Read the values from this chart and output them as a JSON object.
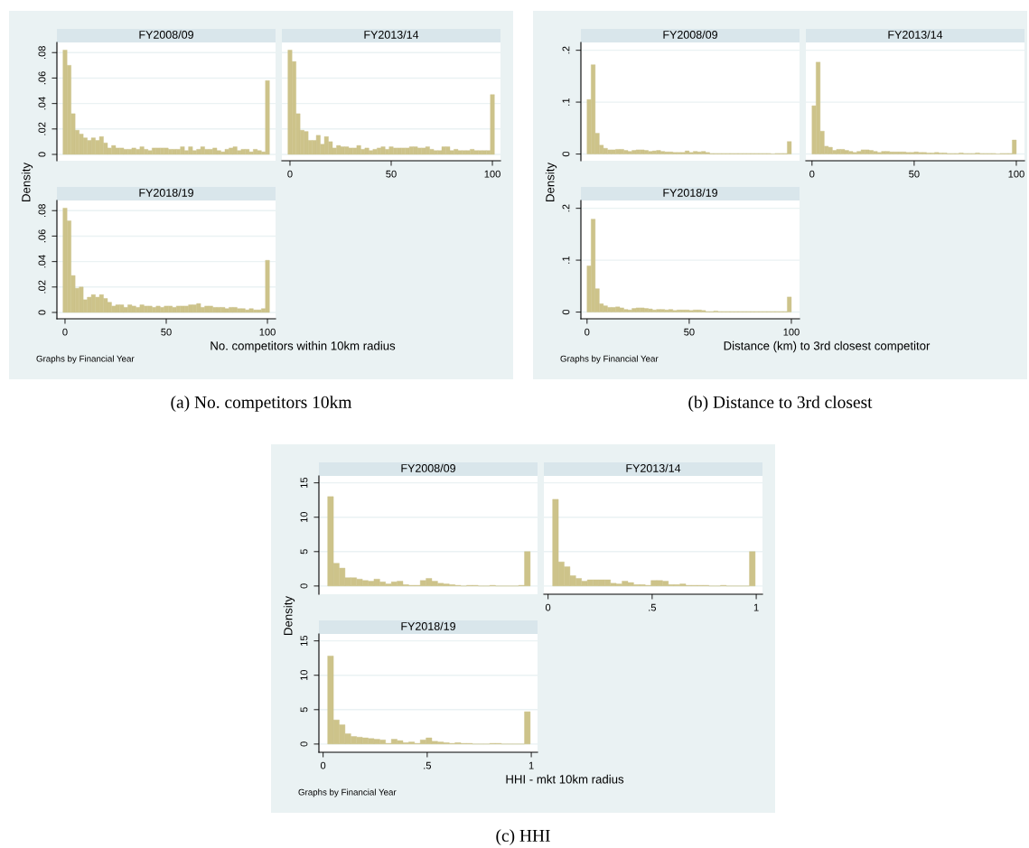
{
  "chart_data": [
    {
      "type": "histogram",
      "title": "FY2008/09",
      "ylabel": "Density",
      "color": "#cdc38a",
      "grid": "y",
      "tick_labels": "y",
      "xlim": [
        -4,
        104
      ],
      "ylim": [
        -0.005,
        0.088
      ],
      "yticks": [
        0,
        {
          "value": 0.02,
          "label": ".02"
        },
        {
          "value": 0.04,
          "label": ".04"
        },
        {
          "value": 0.06,
          "label": ".06"
        },
        {
          "value": 0.08,
          "label": ".08"
        }
      ],
      "bins": [
        -1,
        1,
        3,
        5,
        7,
        9,
        11,
        13,
        15,
        17,
        19,
        21,
        23,
        25,
        27,
        29,
        31,
        33,
        35,
        37,
        39,
        41,
        43,
        45,
        47,
        49,
        51,
        53,
        55,
        57,
        59,
        61,
        63,
        65,
        67,
        69,
        71,
        73,
        75,
        77,
        79,
        81,
        83,
        85,
        87,
        89,
        91,
        93,
        95,
        97,
        99,
        101
      ],
      "values": [
        0.082,
        0.07,
        0.032,
        0.019,
        0.016,
        0.013,
        0.011,
        0.013,
        0.011,
        0.014,
        0.009,
        0.005,
        0.007,
        0.005,
        0.005,
        0.004,
        0.004,
        0.005,
        0.004,
        0.006,
        0.004,
        0.003,
        0.005,
        0.005,
        0.005,
        0.005,
        0.004,
        0.004,
        0.004,
        0.006,
        0.003,
        0.006,
        0.003,
        0.004,
        0.006,
        0.004,
        0.004,
        0.005,
        0.003,
        0.002,
        0.004,
        0.005,
        0.006,
        0.003,
        0.004,
        0.004,
        0.002,
        0.004,
        0.003,
        0.002,
        0.058
      ]
    },
    {
      "type": "histogram",
      "title": "FY2013/14",
      "color": "#cdc38a",
      "grid": "y",
      "tick_labels": "x",
      "xlim": [
        -4,
        104
      ],
      "xticks": [
        0,
        50,
        100
      ],
      "ylim": [
        -0.005,
        0.088
      ],
      "yticks": [
        0,
        0.02,
        0.04,
        0.06,
        0.08
      ],
      "bins": [
        -1,
        1,
        3,
        5,
        7,
        9,
        11,
        13,
        15,
        17,
        19,
        21,
        23,
        25,
        27,
        29,
        31,
        33,
        35,
        37,
        39,
        41,
        43,
        45,
        47,
        49,
        51,
        53,
        55,
        57,
        59,
        61,
        63,
        65,
        67,
        69,
        71,
        73,
        75,
        77,
        79,
        81,
        83,
        85,
        87,
        89,
        91,
        93,
        95,
        97,
        99,
        101
      ],
      "values": [
        0.082,
        0.073,
        0.032,
        0.019,
        0.018,
        0.011,
        0.011,
        0.015,
        0.008,
        0.014,
        0.01,
        0.005,
        0.007,
        0.006,
        0.006,
        0.005,
        0.005,
        0.007,
        0.004,
        0.005,
        0.003,
        0.004,
        0.005,
        0.006,
        0.004,
        0.006,
        0.005,
        0.005,
        0.005,
        0.005,
        0.006,
        0.006,
        0.005,
        0.005,
        0.006,
        0.004,
        0.003,
        0.003,
        0.006,
        0.006,
        0.003,
        0.004,
        0.003,
        0.003,
        0.003,
        0.004,
        0.003,
        0.003,
        0.003,
        0.003,
        0.047
      ]
    },
    {
      "type": "histogram",
      "title": "FY2018/19",
      "xlabel": "No. competitors within 10km radius",
      "annotations": [
        "Graphs by Financial Year",
        "(a) No. competitors 10km"
      ],
      "color": "#cdc38a",
      "grid": "y",
      "xlim": [
        -4,
        104
      ],
      "xticks": [
        0,
        50,
        100
      ],
      "ylim": [
        -0.005,
        0.088
      ],
      "yticks": [
        0,
        {
          "value": 0.02,
          "label": ".02"
        },
        {
          "value": 0.04,
          "label": ".04"
        },
        {
          "value": 0.06,
          "label": ".06"
        },
        {
          "value": 0.08,
          "label": ".08"
        }
      ],
      "bins": [
        -1,
        1,
        3,
        5,
        7,
        9,
        11,
        13,
        15,
        17,
        19,
        21,
        23,
        25,
        27,
        29,
        31,
        33,
        35,
        37,
        39,
        41,
        43,
        45,
        47,
        49,
        51,
        53,
        55,
        57,
        59,
        61,
        63,
        65,
        67,
        69,
        71,
        73,
        75,
        77,
        79,
        81,
        83,
        85,
        87,
        89,
        91,
        93,
        95,
        97,
        99,
        101
      ],
      "values": [
        0.082,
        0.072,
        0.029,
        0.019,
        0.02,
        0.01,
        0.012,
        0.014,
        0.012,
        0.014,
        0.011,
        0.008,
        0.005,
        0.006,
        0.006,
        0.004,
        0.006,
        0.005,
        0.004,
        0.006,
        0.005,
        0.005,
        0.004,
        0.005,
        0.004,
        0.005,
        0.005,
        0.004,
        0.005,
        0.005,
        0.005,
        0.006,
        0.006,
        0.007,
        0.004,
        0.005,
        0.005,
        0.004,
        0.004,
        0.004,
        0.003,
        0.004,
        0.004,
        0.003,
        0.003,
        0.002,
        0.003,
        0.002,
        0.002,
        0.003,
        0.041
      ]
    },
    {
      "type": "histogram",
      "title": "FY2008/09",
      "ylabel": "Density",
      "color": "#cdc38a",
      "grid": "y",
      "tick_labels": "y",
      "xlim": [
        -3,
        104
      ],
      "ylim": [
        -0.013,
        0.215
      ],
      "yticks": [
        0,
        {
          "value": 0.1,
          "label": ".1"
        },
        {
          "value": 0.2,
          "label": ".2"
        }
      ],
      "bins": [
        0,
        2,
        4,
        6,
        8,
        10,
        12,
        14,
        16,
        18,
        20,
        22,
        24,
        26,
        28,
        30,
        32,
        34,
        36,
        38,
        40,
        42,
        44,
        46,
        48,
        50,
        52,
        54,
        56,
        58,
        60,
        62,
        64,
        66,
        68,
        70,
        72,
        74,
        76,
        78,
        80,
        82,
        84,
        86,
        88,
        90,
        92,
        94,
        96,
        98,
        100
      ],
      "values": [
        0.105,
        0.172,
        0.04,
        0.017,
        0.011,
        0.008,
        0.008,
        0.009,
        0.009,
        0.007,
        0.005,
        0.007,
        0.008,
        0.008,
        0.007,
        0.005,
        0.006,
        0.007,
        0.005,
        0.004,
        0.004,
        0.003,
        0.003,
        0.003,
        0.006,
        0.003,
        0.005,
        0.004,
        0.005,
        0.003,
        0.001,
        0.001,
        0.001,
        0.001,
        0.001,
        0.001,
        0.001,
        0.001,
        0.001,
        0.001,
        0.001,
        0.001,
        0.001,
        0.001,
        0.001,
        0,
        0.001,
        0.001,
        0.001,
        0.024
      ]
    },
    {
      "type": "histogram",
      "title": "FY2013/14",
      "color": "#cdc38a",
      "grid": "y",
      "tick_labels": "x",
      "xlim": [
        -3,
        104
      ],
      "xticks": [
        0,
        50,
        100
      ],
      "ylim": [
        -0.013,
        0.215
      ],
      "yticks": [
        0,
        0.1,
        0.2
      ],
      "bins": [
        0,
        2,
        4,
        6,
        8,
        10,
        12,
        14,
        16,
        18,
        20,
        22,
        24,
        26,
        28,
        30,
        32,
        34,
        36,
        38,
        40,
        42,
        44,
        46,
        48,
        50,
        52,
        54,
        56,
        58,
        60,
        62,
        64,
        66,
        68,
        70,
        72,
        74,
        76,
        78,
        80,
        82,
        84,
        86,
        88,
        90,
        92,
        94,
        96,
        98,
        100
      ],
      "values": [
        0.093,
        0.177,
        0.044,
        0.015,
        0.013,
        0.007,
        0.009,
        0.009,
        0.007,
        0.005,
        0.003,
        0.005,
        0.008,
        0.008,
        0.007,
        0.005,
        0.003,
        0.005,
        0.005,
        0.004,
        0.004,
        0.004,
        0.004,
        0.003,
        0.003,
        0.004,
        0.003,
        0.003,
        0.002,
        0.002,
        0.003,
        0.002,
        0.002,
        0.001,
        0.001,
        0.001,
        0.002,
        0.001,
        0.001,
        0.001,
        0.002,
        0.001,
        0.001,
        0.001,
        0.001,
        0,
        0.001,
        0.001,
        0.001,
        0.027
      ]
    },
    {
      "type": "histogram",
      "title": "FY2018/19",
      "xlabel": "Distance (km) to 3rd closest competitor",
      "annotations": [
        "Graphs by Financial Year",
        "(b) Distance to 3rd closest"
      ],
      "color": "#cdc38a",
      "grid": "y",
      "xlim": [
        -3,
        104
      ],
      "xticks": [
        0,
        50,
        100
      ],
      "ylim": [
        -0.013,
        0.215
      ],
      "yticks": [
        0,
        {
          "value": 0.1,
          "label": ".1"
        },
        {
          "value": 0.2,
          "label": ".2"
        }
      ],
      "bins": [
        0,
        2,
        4,
        6,
        8,
        10,
        12,
        14,
        16,
        18,
        20,
        22,
        24,
        26,
        28,
        30,
        32,
        34,
        36,
        38,
        40,
        42,
        44,
        46,
        48,
        50,
        52,
        54,
        56,
        58,
        60,
        62,
        64,
        66,
        68,
        70,
        72,
        74,
        76,
        78,
        80,
        82,
        84,
        86,
        88,
        90,
        92,
        94,
        96,
        98,
        100
      ],
      "values": [
        0.089,
        0.179,
        0.045,
        0.016,
        0.012,
        0.009,
        0.009,
        0.01,
        0.008,
        0.005,
        0.004,
        0.007,
        0.008,
        0.008,
        0.007,
        0.006,
        0.004,
        0.005,
        0.005,
        0.004,
        0.005,
        0.003,
        0.004,
        0.004,
        0.004,
        0.003,
        0.004,
        0.004,
        0.003,
        0.001,
        0.001,
        0.002,
        0.001,
        0.001,
        0.001,
        0.001,
        0.001,
        0.001,
        0.001,
        0.001,
        0.001,
        0.001,
        0.001,
        0.001,
        0.001,
        0.001,
        0.001,
        0.001,
        0.001,
        0.029
      ]
    },
    {
      "type": "histogram",
      "title": "FY2008/09",
      "ylabel": "Density",
      "color": "#cdc38a",
      "grid": "y",
      "tick_labels": "y",
      "xlim": [
        -0.02,
        1.03
      ],
      "ylim": [
        -1.2,
        16
      ],
      "yticks": [
        0,
        5,
        10,
        15
      ],
      "bins": [
        0.022,
        0.0498,
        0.0776,
        0.1054,
        0.1332,
        0.161,
        0.1888,
        0.2166,
        0.2444,
        0.2722,
        0.3,
        0.3278,
        0.3556,
        0.3834,
        0.4112,
        0.439,
        0.4668,
        0.4946,
        0.5224,
        0.5502,
        0.578,
        0.6058,
        0.6336,
        0.6614,
        0.6892,
        0.717,
        0.7448,
        0.7726,
        0.8004,
        0.8282,
        0.856,
        0.8838,
        0.9116,
        0.9394,
        0.9672,
        0.995
      ],
      "values": [
        13.0,
        3.3,
        2.6,
        1.2,
        1.2,
        1.0,
        0.8,
        0.7,
        1.0,
        0.6,
        0.3,
        0.6,
        0.7,
        0.2,
        0.1,
        0.1,
        0.8,
        1.1,
        0.7,
        0.4,
        0.3,
        0.2,
        0.1,
        0,
        0.1,
        0.1,
        0,
        0,
        0.1,
        0,
        0,
        0,
        0,
        0.1,
        5.0
      ]
    },
    {
      "type": "histogram",
      "title": "FY2013/14",
      "color": "#cdc38a",
      "grid": "y",
      "tick_labels": "x",
      "xlim": [
        -0.02,
        1.03
      ],
      "xticks": [
        0,
        {
          "value": 0.5,
          "label": ".5"
        },
        1
      ],
      "ylim": [
        -1.2,
        16
      ],
      "yticks": [
        0,
        5,
        10,
        15
      ],
      "bins": [
        0.022,
        0.0498,
        0.0776,
        0.1054,
        0.1332,
        0.161,
        0.1888,
        0.2166,
        0.2444,
        0.2722,
        0.3,
        0.3278,
        0.3556,
        0.3834,
        0.4112,
        0.439,
        0.4668,
        0.4946,
        0.5224,
        0.5502,
        0.578,
        0.6058,
        0.6336,
        0.6614,
        0.6892,
        0.717,
        0.7448,
        0.7726,
        0.8004,
        0.8282,
        0.856,
        0.8838,
        0.9116,
        0.9394,
        0.9672,
        0.995
      ],
      "values": [
        12.6,
        3.5,
        2.8,
        1.5,
        1.1,
        0.7,
        0.9,
        0.9,
        0.9,
        0.9,
        0.4,
        0.3,
        0.7,
        0.5,
        0.2,
        0.2,
        0.1,
        0.8,
        0.8,
        0.7,
        0.2,
        0.2,
        0.3,
        0.1,
        0.1,
        0.1,
        0.1,
        0,
        0,
        0.1,
        0,
        0,
        0,
        0,
        5.0
      ]
    },
    {
      "type": "histogram",
      "title": "FY2018/19",
      "xlabel": "HHI - mkt 10km radius",
      "annotations": [
        "Graphs by Financial Year",
        "(c) HHI"
      ],
      "color": "#cdc38a",
      "grid": "y",
      "xlim": [
        -0.02,
        1.03
      ],
      "xticks": [
        0,
        {
          "value": 0.5,
          "label": ".5"
        },
        1
      ],
      "ylim": [
        -1.2,
        16
      ],
      "yticks": [
        0,
        5,
        10,
        15
      ],
      "bins": [
        0.022,
        0.0498,
        0.0776,
        0.1054,
        0.1332,
        0.161,
        0.1888,
        0.2166,
        0.2444,
        0.2722,
        0.3,
        0.3278,
        0.3556,
        0.3834,
        0.4112,
        0.439,
        0.4668,
        0.4946,
        0.5224,
        0.5502,
        0.578,
        0.6058,
        0.6336,
        0.6614,
        0.6892,
        0.717,
        0.7448,
        0.7726,
        0.8004,
        0.8282,
        0.856,
        0.8838,
        0.9116,
        0.9394,
        0.9672,
        0.995
      ],
      "values": [
        12.8,
        3.5,
        2.8,
        1.5,
        1.1,
        1.0,
        0.9,
        0.8,
        0.7,
        0.6,
        0.1,
        0.7,
        0.5,
        0.2,
        0.3,
        0.1,
        0.6,
        0.9,
        0.4,
        0.3,
        0.2,
        0.1,
        0.2,
        0.1,
        0.1,
        0,
        0,
        0,
        0.1,
        0.1,
        0,
        0,
        0,
        0,
        4.7
      ]
    }
  ]
}
